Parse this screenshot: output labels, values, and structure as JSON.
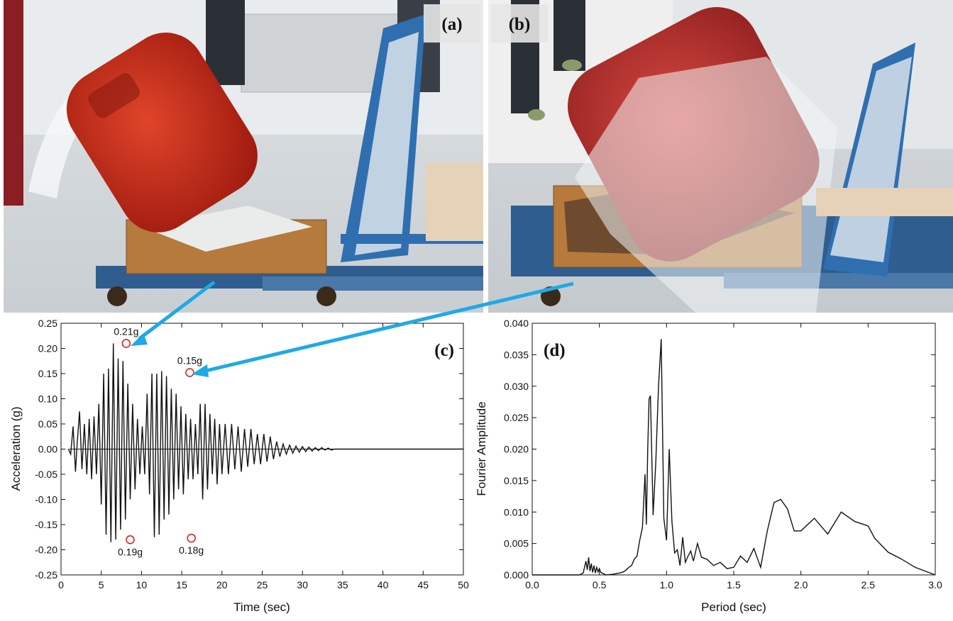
{
  "photos": {
    "a": {
      "label": "(a)"
    },
    "b": {
      "label": "(b)"
    }
  },
  "chart_data": [
    {
      "type": "line",
      "panel_label": "(c)",
      "xlabel": "Time (sec)",
      "ylabel": "Acceleration (g)",
      "xlim": [
        0,
        50
      ],
      "ylim": [
        -0.25,
        0.25
      ],
      "xticks": [
        "0",
        "5",
        "10",
        "15",
        "20",
        "25",
        "30",
        "35",
        "40",
        "45",
        "50"
      ],
      "yticks": [
        "-0.25",
        "-0.20",
        "-0.15",
        "-0.10",
        "-0.05",
        "0.00",
        "0.05",
        "0.10",
        "0.15",
        "0.20",
        "0.25"
      ],
      "grid": false,
      "annotations": [
        {
          "text": "0.21g",
          "x": 8.1,
          "y": 0.21,
          "position": "above"
        },
        {
          "text": "0.15g",
          "x": 16.0,
          "y": 0.152,
          "position": "above"
        },
        {
          "text": "0.19g",
          "x": 8.6,
          "y": -0.18,
          "position": "below"
        },
        {
          "text": "0.18g",
          "x": 16.2,
          "y": -0.177,
          "position": "below"
        }
      ],
      "series": [
        {
          "x": [
            0.9,
            1.2,
            1.5,
            1.8,
            2.0,
            2.3,
            2.6,
            2.9,
            3.2,
            3.5,
            3.8,
            4.1,
            4.4,
            4.7,
            5.0,
            5.3,
            5.6,
            5.9,
            6.2,
            6.5,
            6.8,
            7.1,
            7.4,
            7.7,
            8.0,
            8.3,
            8.6,
            8.9,
            9.2,
            9.5,
            9.8,
            10.1,
            10.4,
            10.7,
            11.0,
            11.3,
            11.6,
            11.9,
            12.2,
            12.5,
            12.8,
            13.1,
            13.4,
            13.7,
            14.0,
            14.3,
            14.6,
            14.9,
            15.2,
            15.5,
            15.8,
            16.1,
            16.4,
            16.7,
            17.0,
            17.3,
            17.6,
            17.9,
            18.2,
            18.5,
            18.8,
            19.1,
            19.4,
            19.7,
            20.0,
            20.4,
            20.8,
            21.2,
            21.6,
            22.0,
            22.4,
            22.8,
            23.2,
            23.6,
            24.0,
            24.4,
            24.8,
            25.2,
            25.6,
            26.0,
            26.4,
            26.8,
            27.2,
            27.6,
            28.0,
            28.4,
            28.8,
            29.2,
            29.6,
            30.0,
            30.4,
            30.8,
            31.2,
            31.6,
            32.0,
            32.4,
            32.8,
            33.2,
            33.6,
            34.0,
            34.4,
            34.8,
            35.2,
            35.6,
            36.0,
            36.4,
            36.8,
            37.2,
            37.6,
            38.0,
            38.4,
            38.8,
            39.2,
            39.6,
            40.0,
            40.4,
            40.8,
            41.2,
            41.6,
            42.0,
            42.4,
            42.8,
            43.2,
            43.6,
            44.0,
            44.4,
            44.8,
            45.2,
            45.6,
            46.0,
            46.4,
            46.8,
            47.2,
            47.6,
            48.0,
            48.4,
            48.8,
            49.2,
            49.6,
            50.0
          ],
          "values": [
            0.0,
            -0.01,
            0.045,
            -0.045,
            0.01,
            0.075,
            -0.04,
            0.05,
            -0.05,
            0.06,
            -0.06,
            0.065,
            -0.05,
            0.09,
            -0.11,
            0.15,
            -0.17,
            0.16,
            -0.185,
            0.21,
            -0.18,
            0.18,
            -0.16,
            0.175,
            -0.14,
            0.13,
            -0.1,
            0.09,
            -0.08,
            0.06,
            -0.05,
            0.045,
            -0.05,
            0.11,
            -0.09,
            0.15,
            -0.175,
            0.15,
            -0.17,
            0.155,
            -0.14,
            0.145,
            -0.13,
            0.12,
            -0.1,
            0.11,
            -0.08,
            0.085,
            -0.09,
            0.07,
            -0.06,
            0.06,
            -0.06,
            0.05,
            -0.05,
            0.09,
            -0.1,
            0.09,
            -0.08,
            0.07,
            -0.05,
            0.06,
            -0.07,
            0.05,
            -0.05,
            0.05,
            -0.05,
            0.05,
            -0.04,
            0.045,
            -0.045,
            0.04,
            -0.035,
            0.04,
            -0.03,
            0.03,
            -0.03,
            0.03,
            -0.025,
            0.025,
            -0.02,
            0.015,
            -0.015,
            0.01,
            -0.01,
            0.008,
            -0.008,
            0.006,
            -0.006,
            0.005,
            -0.005,
            0.004,
            -0.004,
            0.003,
            -0.003,
            0.003,
            -0.002,
            0.002,
            -0.002,
            0.0,
            0.0,
            0.0,
            0.0,
            0.0,
            0.0,
            0.0,
            0.0,
            0.0,
            0.0,
            0.0,
            0.0,
            0.0,
            0.0,
            0.0,
            0.0,
            0.0,
            0.0,
            0.0,
            0.0,
            0.0,
            0.0,
            0.0,
            0.0,
            0.0,
            0.0,
            0.0,
            0.0,
            0.0,
            0.0,
            0.0,
            0.0,
            0.0,
            0.0,
            0.0,
            0.0,
            0.0,
            0.0,
            0.0,
            0.0,
            0.0
          ]
        }
      ]
    },
    {
      "type": "line",
      "panel_label": "(d)",
      "xlabel": "Period (sec)",
      "ylabel": "Fourier Amplitude",
      "xlim": [
        0,
        3.0
      ],
      "ylim": [
        0,
        0.04
      ],
      "xticks": [
        "0.0",
        "0.5",
        "1.0",
        "1.5",
        "2.0",
        "2.5",
        "3.0"
      ],
      "yticks": [
        "0.000",
        "0.005",
        "0.010",
        "0.015",
        "0.020",
        "0.025",
        "0.030",
        "0.035",
        "0.040"
      ],
      "grid": false,
      "series": [
        {
          "x": [
            0.0,
            0.35,
            0.38,
            0.4,
            0.41,
            0.42,
            0.43,
            0.44,
            0.45,
            0.46,
            0.47,
            0.48,
            0.49,
            0.5,
            0.51,
            0.52,
            0.55,
            0.6,
            0.65,
            0.68,
            0.7,
            0.72,
            0.74,
            0.76,
            0.78,
            0.8,
            0.82,
            0.84,
            0.85,
            0.86,
            0.87,
            0.88,
            0.9,
            0.92,
            0.94,
            0.96,
            0.98,
            1.0,
            1.02,
            1.04,
            1.06,
            1.08,
            1.1,
            1.12,
            1.14,
            1.16,
            1.18,
            1.2,
            1.23,
            1.26,
            1.3,
            1.35,
            1.4,
            1.45,
            1.5,
            1.55,
            1.6,
            1.65,
            1.7,
            1.75,
            1.8,
            1.85,
            1.9,
            1.95,
            2.0,
            2.1,
            2.2,
            2.3,
            2.4,
            2.5,
            2.55,
            2.65,
            2.75,
            2.85,
            3.0
          ],
          "values": [
            0.0,
            0.0,
            0.0003,
            0.0022,
            0.0008,
            0.0028,
            0.0006,
            0.0018,
            0.0004,
            0.0015,
            0.0003,
            0.0012,
            0.0005,
            0.001,
            0.0004,
            0.0003,
            0.0,
            0.0001,
            0.0003,
            0.0005,
            0.0008,
            0.0012,
            0.0015,
            0.0025,
            0.003,
            0.0055,
            0.0075,
            0.016,
            0.008,
            0.02,
            0.028,
            0.0285,
            0.0095,
            0.018,
            0.03,
            0.0375,
            0.009,
            0.0055,
            0.02,
            0.0085,
            0.0035,
            0.004,
            0.0015,
            0.006,
            0.002,
            0.003,
            0.0038,
            0.0022,
            0.005,
            0.0028,
            0.0025,
            0.0015,
            0.002,
            0.001,
            0.0012,
            0.003,
            0.002,
            0.0042,
            0.0012,
            0.007,
            0.0115,
            0.012,
            0.0105,
            0.007,
            0.007,
            0.009,
            0.0065,
            0.01,
            0.0085,
            0.0078,
            0.0058,
            0.0036,
            0.0025,
            0.0012,
            0.0
          ]
        }
      ]
    }
  ]
}
